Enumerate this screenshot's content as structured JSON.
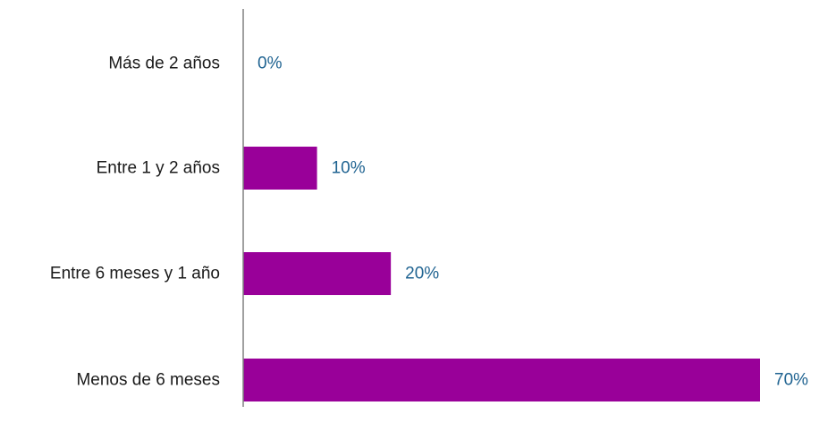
{
  "chart_data": {
    "type": "bar",
    "orientation": "horizontal",
    "categories": [
      "Más de 2 años",
      "Entre 1 y 2 años",
      "Entre 6 meses y 1 año",
      "Menos de 6 meses"
    ],
    "values": [
      0,
      10,
      20,
      70
    ],
    "data_labels": [
      "0%",
      "10%",
      "20%",
      "70%"
    ],
    "unit": "%",
    "xlim": [
      0,
      70
    ],
    "grid": false,
    "legend": "none",
    "colors": {
      "bar": "#990099",
      "value_label": "#1F6391",
      "axis": "#808080",
      "category_label": "#1a1a1a"
    }
  }
}
